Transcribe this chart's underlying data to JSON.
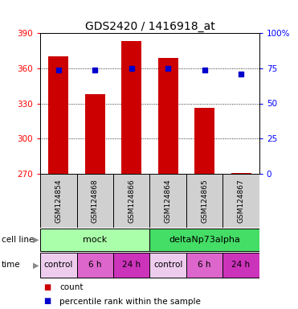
{
  "title": "GDS2420 / 1416918_at",
  "samples": [
    "GSM124854",
    "GSM124868",
    "GSM124866",
    "GSM124864",
    "GSM124865",
    "GSM124867"
  ],
  "bar_values": [
    370,
    338,
    383,
    369,
    326,
    271
  ],
  "percentile_values": [
    74,
    74,
    75,
    75,
    74,
    71
  ],
  "bar_color": "#cc0000",
  "dot_color": "#0000cc",
  "ylim_left": [
    270,
    390
  ],
  "ylim_right": [
    0,
    100
  ],
  "yticks_left": [
    270,
    300,
    330,
    360,
    390
  ],
  "yticks_right": [
    0,
    25,
    50,
    75,
    100
  ],
  "yticklabels_right": [
    "0",
    "25",
    "50",
    "75",
    "100%"
  ],
  "gridlines": [
    300,
    330,
    360
  ],
  "cell_line_labels": [
    "mock",
    "deltaNp73alpha"
  ],
  "cell_line_spans": [
    [
      0,
      3
    ],
    [
      3,
      6
    ]
  ],
  "cell_line_colors": [
    "#aaffaa",
    "#44dd66"
  ],
  "time_labels": [
    "control",
    "6 h",
    "24 h",
    "control",
    "6 h",
    "24 h"
  ],
  "time_colors": [
    "#eeccee",
    "#dd66cc",
    "#cc33bb",
    "#eeccee",
    "#dd66cc",
    "#cc33bb"
  ],
  "legend_count_color": "#cc0000",
  "legend_dot_color": "#0000cc",
  "sample_box_color": "#d0d0d0",
  "bar_width": 0.55,
  "background_color": "#ffffff"
}
